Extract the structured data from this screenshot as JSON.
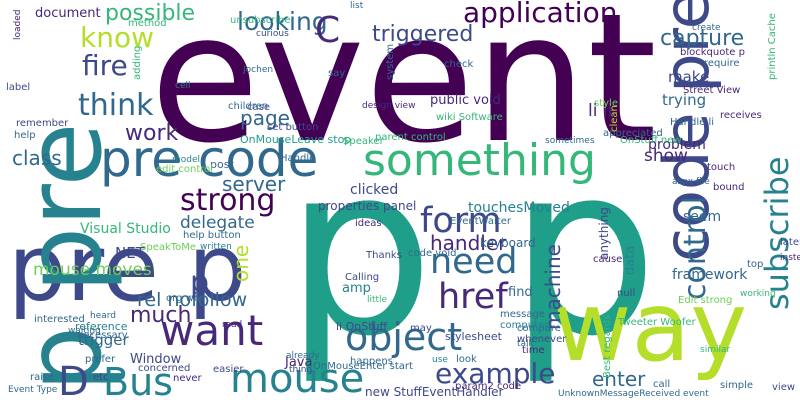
{
  "words": [
    "event",
    "p p",
    "pre p",
    "p pre",
    "way",
    "code pre",
    "pre code",
    "something",
    "want",
    "mouse",
    "Bus",
    "D",
    "object",
    "example",
    "href",
    "need",
    "form",
    "strong",
    "subscribe",
    "control",
    "application",
    "triggered",
    "possible",
    "looking",
    "know",
    "fire",
    "think",
    "work",
    "C",
    "capture",
    "page",
    "class",
    "server",
    "delegate",
    "handler",
    "machine",
    "enter",
    "mouse moves",
    "much",
    "rel nofollow",
    "show",
    "li li",
    "make",
    "trying",
    "framework",
    "p",
    "one",
    "trigger",
    "Visual Studio",
    "NET",
    "public void",
    "clicked",
    "touchesMoved",
    "properties panel",
    "new StuffEventHandler",
    "UnknownMessageReceived event",
    "document",
    "problem",
    "OnMouseLeave stop",
    "EventWaiter",
    "keyboard",
    "stylesheet",
    "code void",
    "find",
    "amp",
    "li OnStuff",
    "Window",
    "Java",
    "org wiki",
    "help button",
    "reference",
    "concerned",
    "seem",
    "anything",
    "data",
    "post",
    "set button",
    "parent control",
    "OnStuff new",
    "Handle li",
    "Street View",
    "println Cache",
    "blockquote p",
    "method",
    "unsubscribe",
    "check",
    "Tweeter Woofer",
    "Edit strong",
    "Best regards",
    "OnMouseEnter start",
    "param2 code",
    "wiki Software",
    "Speaker",
    "Handle",
    "ideas",
    "Thanks",
    "Calling",
    "little",
    "use",
    "talk",
    "top",
    "similar",
    "call",
    "simple",
    "view",
    "etc",
    "never",
    "raise",
    "Event Type",
    "prefer",
    "necessary",
    "interested",
    "case",
    "children",
    "remember",
    "help",
    "label",
    "system",
    "design view",
    "sometimes",
    "appreciated",
    "receives",
    "require",
    "create",
    "touch",
    "bound",
    "later",
    "instead",
    "working",
    "look",
    "time",
    "whenever",
    "compare",
    "computer",
    "message",
    "happens",
    "already",
    "thing",
    "read",
    "easier",
    "cause",
    "null",
    "may",
    "edit control",
    "SpeakToMe",
    "heard",
    "waiting",
    "written",
    "model",
    "aspx file",
    "style",
    "clean",
    "list",
    "curious",
    "Jochen",
    "cell",
    "adding",
    "loaded",
    "say"
  ]
}
